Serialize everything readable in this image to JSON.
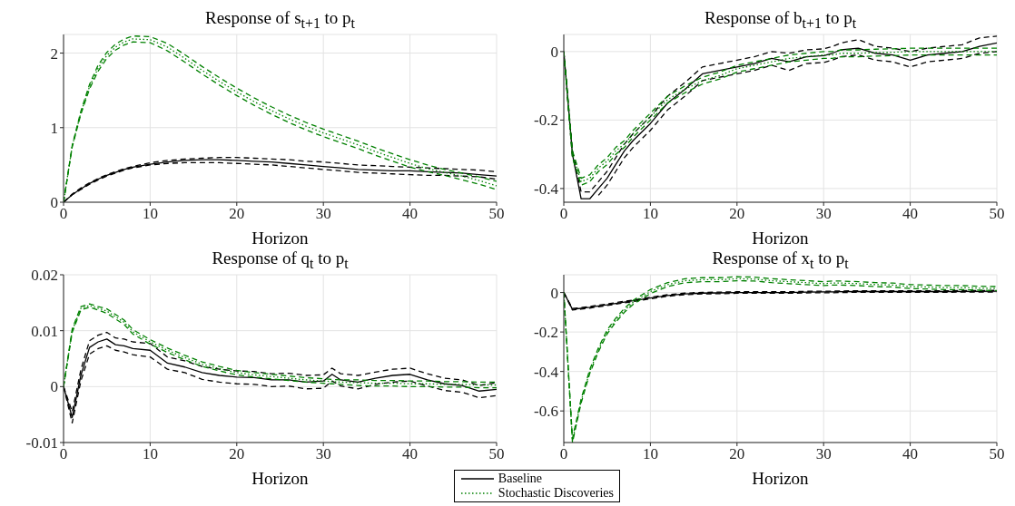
{
  "chart_data": [
    {
      "type": "line",
      "title": "Response of s$_{t+1}$ to p$_{t}$",
      "xlabel": "Horizon",
      "x": [
        0,
        1,
        2,
        3,
        4,
        5,
        6,
        7,
        8,
        10,
        12,
        14,
        16,
        18,
        20,
        22,
        24,
        26,
        28,
        30,
        31,
        32,
        34,
        36,
        38,
        40,
        42,
        44,
        46,
        48,
        50
      ],
      "xlim": [
        0,
        50
      ],
      "xticks": [
        0,
        10,
        20,
        30,
        40,
        50
      ],
      "ylim": [
        0,
        2.25
      ],
      "yticks": [
        0,
        1,
        2
      ],
      "grid": true,
      "series": [
        {
          "color": "#000000",
          "line_style": "solid",
          "values": [
            0,
            0.1,
            0.18,
            0.25,
            0.31,
            0.36,
            0.4,
            0.44,
            0.47,
            0.51,
            0.54,
            0.56,
            0.57,
            0.57,
            0.56,
            0.55,
            0.54,
            0.52,
            0.5,
            0.48,
            0.47,
            0.46,
            0.44,
            0.43,
            0.42,
            0.42,
            0.41,
            0.4,
            0.39,
            0.37,
            0.35
          ]
        },
        {
          "color": "#000000",
          "line_style": "dashed",
          "values": [
            0,
            0.1,
            0.17,
            0.24,
            0.3,
            0.35,
            0.39,
            0.43,
            0.46,
            0.5,
            0.52,
            0.53,
            0.53,
            0.53,
            0.52,
            0.51,
            0.5,
            0.48,
            0.46,
            0.44,
            0.43,
            0.42,
            0.4,
            0.39,
            0.38,
            0.37,
            0.36,
            0.36,
            0.35,
            0.34,
            0.31
          ]
        },
        {
          "color": "#000000",
          "line_style": "dashed",
          "values": [
            0,
            0.11,
            0.19,
            0.26,
            0.32,
            0.37,
            0.41,
            0.45,
            0.48,
            0.53,
            0.56,
            0.58,
            0.59,
            0.6,
            0.6,
            0.59,
            0.58,
            0.57,
            0.55,
            0.54,
            0.53,
            0.52,
            0.5,
            0.49,
            0.48,
            0.47,
            0.46,
            0.45,
            0.44,
            0.43,
            0.41
          ]
        },
        {
          "color": "#008000",
          "line_style": "dotted",
          "values": [
            0,
            0.75,
            1.2,
            1.55,
            1.8,
            1.97,
            2.08,
            2.15,
            2.19,
            2.18,
            2.08,
            1.93,
            1.77,
            1.62,
            1.48,
            1.35,
            1.23,
            1.12,
            1.02,
            0.93,
            0.89,
            0.85,
            0.77,
            0.68,
            0.6,
            0.52,
            0.45,
            0.4,
            0.35,
            0.29,
            0.22
          ]
        },
        {
          "color": "#008000",
          "line_style": "dashed",
          "values": [
            0,
            0.74,
            1.18,
            1.52,
            1.76,
            1.93,
            2.04,
            2.11,
            2.15,
            2.14,
            2.03,
            1.88,
            1.72,
            1.57,
            1.43,
            1.3,
            1.18,
            1.07,
            0.97,
            0.88,
            0.84,
            0.8,
            0.72,
            0.63,
            0.55,
            0.47,
            0.41,
            0.36,
            0.3,
            0.24,
            0.17
          ]
        },
        {
          "color": "#008000",
          "line_style": "dashed",
          "values": [
            0,
            0.76,
            1.22,
            1.58,
            1.84,
            2.01,
            2.12,
            2.19,
            2.23,
            2.22,
            2.13,
            1.98,
            1.82,
            1.67,
            1.53,
            1.4,
            1.28,
            1.17,
            1.07,
            0.98,
            0.94,
            0.9,
            0.82,
            0.73,
            0.65,
            0.57,
            0.5,
            0.44,
            0.39,
            0.34,
            0.28
          ]
        }
      ]
    },
    {
      "type": "line",
      "title": "Response of b$_{t+1}$ to p$_{t}$",
      "xlabel": "Horizon",
      "x": [
        0,
        1,
        2,
        3,
        4,
        5,
        6,
        7,
        8,
        10,
        12,
        14,
        16,
        18,
        20,
        22,
        24,
        26,
        28,
        30,
        31,
        32,
        34,
        36,
        38,
        40,
        42,
        44,
        46,
        48,
        50
      ],
      "xlim": [
        0,
        50
      ],
      "xticks": [
        0,
        10,
        20,
        30,
        40,
        50
      ],
      "ylim": [
        -0.44,
        0.05
      ],
      "yticks": [
        -0.4,
        -0.2,
        0
      ],
      "grid": true,
      "series": [
        {
          "color": "#000000",
          "line_style": "solid",
          "values": [
            0,
            -0.3,
            -0.43,
            -0.43,
            -0.4,
            -0.37,
            -0.33,
            -0.29,
            -0.26,
            -0.21,
            -0.15,
            -0.11,
            -0.065,
            -0.055,
            -0.045,
            -0.035,
            -0.02,
            -0.03,
            -0.015,
            -0.012,
            -0.005,
            0.005,
            0.01,
            -0.005,
            -0.01,
            -0.025,
            -0.01,
            -0.005,
            0,
            0.015,
            0.025
          ]
        },
        {
          "color": "#000000",
          "line_style": "dashed",
          "values": [
            0,
            -0.31,
            null,
            null,
            -0.42,
            -0.39,
            -0.35,
            -0.31,
            -0.28,
            -0.23,
            -0.17,
            -0.13,
            -0.085,
            -0.075,
            -0.065,
            -0.055,
            -0.04,
            -0.055,
            -0.035,
            -0.032,
            -0.025,
            -0.015,
            -0.01,
            -0.025,
            -0.03,
            -0.045,
            -0.03,
            -0.025,
            -0.02,
            -0.005,
            0
          ]
        },
        {
          "color": "#000000",
          "line_style": "dashed",
          "values": [
            0,
            -0.29,
            -0.41,
            -0.41,
            -0.38,
            -0.35,
            -0.31,
            -0.27,
            -0.24,
            -0.19,
            -0.13,
            -0.09,
            -0.045,
            -0.035,
            -0.025,
            -0.015,
            0,
            -0.005,
            0.005,
            0.008,
            0.015,
            0.025,
            0.035,
            0.015,
            0.01,
            0,
            0.01,
            0.015,
            0.02,
            0.04,
            0.045
          ]
        },
        {
          "color": "#008000",
          "line_style": "dotted",
          "values": [
            0,
            -0.3,
            -0.38,
            -0.37,
            -0.34,
            -0.32,
            -0.29,
            -0.27,
            -0.24,
            -0.19,
            -0.14,
            -0.11,
            -0.085,
            -0.07,
            -0.05,
            -0.04,
            -0.03,
            -0.02,
            -0.015,
            -0.01,
            -0.01,
            -0.005,
            -0.005,
            -0.003,
            -0.002,
            0,
            0,
            0,
            0,
            0,
            0
          ]
        },
        {
          "color": "#008000",
          "line_style": "dashed",
          "values": [
            0,
            -0.31,
            -0.39,
            -0.38,
            -0.35,
            -0.33,
            -0.3,
            -0.28,
            -0.25,
            -0.2,
            -0.15,
            -0.12,
            -0.095,
            -0.08,
            -0.06,
            -0.05,
            -0.04,
            -0.03,
            -0.025,
            -0.02,
            -0.02,
            -0.015,
            -0.015,
            -0.013,
            -0.012,
            -0.01,
            -0.01,
            -0.01,
            -0.01,
            -0.01,
            -0.01
          ]
        },
        {
          "color": "#008000",
          "line_style": "dashed",
          "values": [
            0,
            -0.29,
            -0.37,
            -0.36,
            -0.33,
            -0.31,
            -0.28,
            -0.26,
            -0.23,
            -0.18,
            -0.13,
            -0.1,
            -0.075,
            -0.06,
            -0.04,
            -0.03,
            -0.02,
            -0.01,
            -0.005,
            0,
            0,
            0.005,
            0.005,
            0.007,
            0.008,
            0.01,
            0.01,
            0.01,
            0.01,
            0.01,
            0.01
          ]
        }
      ]
    },
    {
      "type": "line",
      "title": "Response of q$_{t}$ to p$_{t}$",
      "xlabel": "Horizon",
      "x": [
        0,
        1,
        2,
        3,
        4,
        5,
        6,
        7,
        8,
        10,
        12,
        14,
        16,
        18,
        20,
        22,
        24,
        26,
        28,
        30,
        31,
        32,
        34,
        36,
        38,
        40,
        42,
        44,
        46,
        48,
        50
      ],
      "xlim": [
        0,
        50
      ],
      "xticks": [
        0,
        10,
        20,
        30,
        40,
        50
      ],
      "ylim": [
        -0.01,
        0.02
      ],
      "yticks": [
        -0.01,
        0,
        0.01,
        0.02
      ],
      "grid": true,
      "legend": "bottom right",
      "series": [
        {
          "name": "Baseline",
          "color": "#000000",
          "line_style": "solid",
          "values": [
            0,
            -0.0055,
            0.002,
            0.007,
            0.008,
            0.0085,
            0.0075,
            0.0073,
            0.0068,
            0.0065,
            0.0042,
            0.0035,
            0.0025,
            0.002,
            0.0017,
            0.0016,
            0.0012,
            0.0012,
            0.0008,
            0.001,
            0.0022,
            0.0012,
            0.0008,
            0.0015,
            0.002,
            0.0022,
            0.0012,
            0.0005,
            0.0002,
            -0.0008,
            -0.0005
          ]
        },
        {
          "color": "#000000",
          "line_style": "dashed",
          "values": [
            0,
            -0.0065,
            0.001,
            0.0058,
            0.0068,
            0.0073,
            0.0065,
            0.0062,
            0.0057,
            0.0053,
            0.0031,
            0.0025,
            0.0013,
            0.0008,
            0.0005,
            0.0004,
            0,
            0.0001,
            -0.0004,
            -0.0003,
            0.001,
            0.0001,
            -0.0004,
            0.0004,
            0.0008,
            0.001,
            0.0001,
            -0.0007,
            -0.001,
            -0.002,
            -0.0016
          ]
        },
        {
          "color": "#000000",
          "line_style": "dashed",
          "values": [
            0,
            -0.0045,
            0.003,
            0.0082,
            0.0092,
            0.0097,
            0.0087,
            0.0085,
            0.008,
            0.0077,
            0.0053,
            0.0046,
            0.0036,
            0.0031,
            0.0028,
            0.0027,
            0.0023,
            0.0024,
            0.002,
            0.0021,
            0.0033,
            0.0023,
            0.002,
            0.0026,
            0.0031,
            0.0033,
            0.0023,
            0.0015,
            0.0012,
            0.0002,
            0.0007
          ]
        },
        {
          "name": "Stochastic Discoveries",
          "color": "#008000",
          "line_style": "dotted",
          "values": [
            0,
            0.01,
            0.014,
            0.0145,
            0.014,
            0.0135,
            0.0125,
            0.0115,
            0.0098,
            0.008,
            0.0065,
            0.0052,
            0.004,
            0.0032,
            0.0025,
            0.0021,
            0.0018,
            0.0015,
            0.0012,
            0.001,
            0.0009,
            0.0008,
            0.0007,
            0.0006,
            0.0006,
            0.0005,
            0.0005,
            0.0004,
            0.0004,
            0.0003,
            0.0003
          ]
        },
        {
          "color": "#008000",
          "line_style": "dashed",
          "values": [
            0,
            0.0097,
            0.0137,
            0.0142,
            0.0137,
            0.0131,
            0.0121,
            0.0111,
            0.0094,
            0.0076,
            0.0061,
            0.0048,
            0.0036,
            0.0028,
            0.0021,
            0.0017,
            0.0014,
            0.0011,
            0.0008,
            0.0006,
            0.0005,
            0.0004,
            0.0002,
            0.0001,
            0.0001,
            0,
            0,
            -0.0001,
            -0.0001,
            -0.0002,
            -0.0002
          ]
        },
        {
          "color": "#008000",
          "line_style": "dashed",
          "values": [
            0,
            0.0103,
            0.0143,
            0.0148,
            0.0143,
            0.0139,
            0.0129,
            0.0119,
            0.0102,
            0.0084,
            0.0069,
            0.0056,
            0.0044,
            0.0036,
            0.0029,
            0.0025,
            0.0022,
            0.0019,
            0.0016,
            0.0014,
            0.0013,
            0.0012,
            0.0012,
            0.0011,
            0.0011,
            0.001,
            0.001,
            0.0009,
            0.0009,
            0.0008,
            0.0008
          ]
        }
      ]
    },
    {
      "type": "line",
      "title": "Response of x$_{t}$ to p$_{t}$",
      "xlabel": "Horizon",
      "x": [
        0,
        1,
        2,
        3,
        4,
        5,
        6,
        7,
        8,
        10,
        12,
        14,
        16,
        18,
        20,
        22,
        24,
        26,
        28,
        30,
        31,
        32,
        34,
        36,
        38,
        40,
        42,
        44,
        46,
        48,
        50
      ],
      "xlim": [
        0,
        50
      ],
      "xticks": [
        0,
        10,
        20,
        30,
        40,
        50
      ],
      "ylim": [
        -0.76,
        0.09
      ],
      "yticks": [
        -0.6,
        -0.4,
        -0.2,
        0
      ],
      "grid": true,
      "series": [
        {
          "color": "#000000",
          "line_style": "solid",
          "values": [
            0,
            -0.085,
            -0.08,
            -0.075,
            -0.068,
            -0.062,
            -0.055,
            -0.048,
            -0.042,
            -0.028,
            -0.015,
            -0.007,
            -0.003,
            -0.002,
            0,
            0,
            0,
            0,
            0.002,
            0.003,
            0.003,
            0.004,
            0.005,
            0.005,
            0.005,
            0.005,
            0.005,
            0.005,
            0.006,
            0.006,
            0.007
          ]
        },
        {
          "color": "#000000",
          "line_style": "dashed",
          "values": [
            0,
            -0.089,
            -0.084,
            -0.079,
            -0.072,
            -0.066,
            -0.059,
            -0.052,
            -0.046,
            -0.032,
            -0.019,
            -0.011,
            -0.007,
            -0.006,
            -0.004,
            -0.004,
            -0.004,
            -0.004,
            -0.002,
            -0.001,
            -0.001,
            0,
            0.001,
            0.001,
            0.001,
            0.001,
            0.001,
            0.001,
            0.002,
            0.002,
            0.003
          ]
        },
        {
          "color": "#000000",
          "line_style": "dashed",
          "values": [
            0,
            -0.081,
            -0.076,
            -0.071,
            -0.064,
            -0.058,
            -0.051,
            -0.044,
            -0.038,
            -0.024,
            -0.011,
            -0.003,
            0.001,
            0.002,
            0.004,
            0.004,
            0.004,
            0.004,
            0.006,
            0.007,
            0.007,
            0.008,
            0.009,
            0.009,
            0.009,
            0.009,
            0.009,
            0.009,
            0.01,
            0.01,
            0.011
          ]
        },
        {
          "color": "#008000",
          "line_style": "dotted",
          "values": [
            0,
            -0.75,
            -0.55,
            -0.4,
            -0.29,
            -0.2,
            -0.14,
            -0.09,
            -0.05,
            0.005,
            0.04,
            0.06,
            0.065,
            0.065,
            0.07,
            0.068,
            0.06,
            0.055,
            0.05,
            0.045,
            0.048,
            0.048,
            0.045,
            0.04,
            0.038,
            0.03,
            0.028,
            0.025,
            0.025,
            0.022,
            0.02
          ]
        },
        {
          "color": "#008000",
          "line_style": "dashed",
          "values": [
            0,
            -0.76,
            -0.56,
            -0.41,
            -0.3,
            -0.21,
            -0.15,
            -0.1,
            -0.06,
            -0.005,
            0.03,
            0.05,
            0.055,
            0.055,
            0.06,
            0.058,
            0.05,
            0.045,
            0.04,
            0.035,
            0.038,
            0.038,
            0.035,
            0.03,
            0.028,
            0.02,
            0.018,
            0.015,
            0.015,
            0.012,
            0.01
          ]
        },
        {
          "color": "#008000",
          "line_style": "dashed",
          "values": [
            0,
            -0.74,
            -0.54,
            -0.39,
            -0.28,
            -0.19,
            -0.13,
            -0.08,
            -0.04,
            0.015,
            0.05,
            0.07,
            0.075,
            0.075,
            0.08,
            0.078,
            0.07,
            0.065,
            0.06,
            0.055,
            0.058,
            0.058,
            0.055,
            0.05,
            0.048,
            0.04,
            0.038,
            0.035,
            0.035,
            0.032,
            0.03
          ]
        }
      ]
    }
  ]
}
